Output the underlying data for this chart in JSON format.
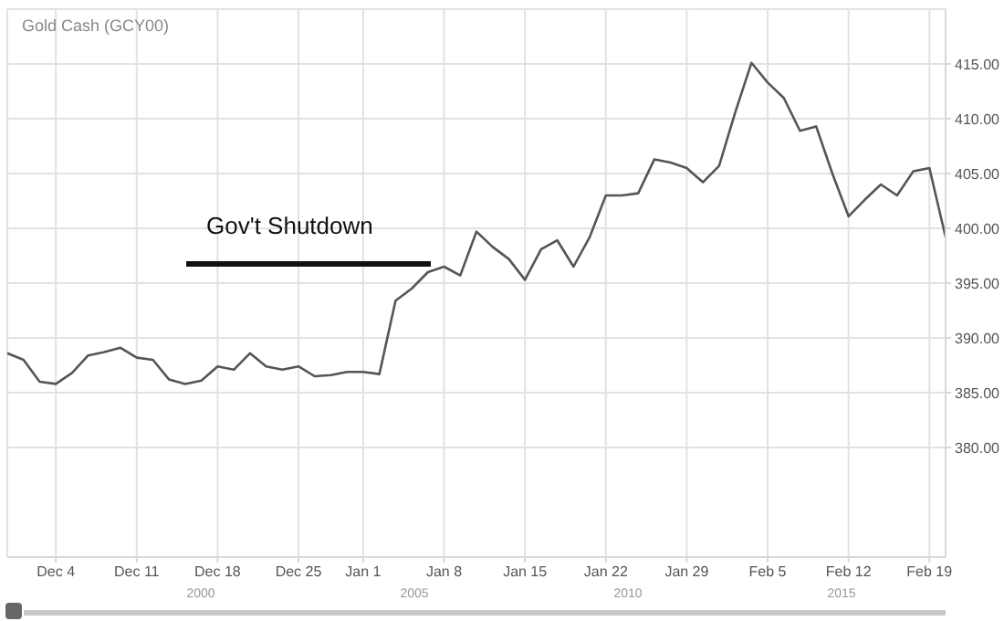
{
  "chart_data": {
    "type": "line",
    "title": "Gold Cash (GCY00)",
    "categories": [
      null,
      null,
      null,
      "Dec 4",
      null,
      null,
      null,
      null,
      "Dec 11",
      null,
      null,
      null,
      null,
      "Dec 18",
      null,
      null,
      null,
      null,
      "Dec 25",
      null,
      null,
      null,
      "Jan 1",
      null,
      null,
      null,
      null,
      "Jan 8",
      null,
      null,
      null,
      null,
      "Jan 15",
      null,
      null,
      null,
      null,
      "Jan 22",
      null,
      null,
      null,
      null,
      "Jan 29",
      null,
      null,
      null,
      null,
      "Feb 5",
      null,
      null,
      null,
      null,
      "Feb 12",
      null,
      null,
      null,
      null,
      "Feb 19",
      null
    ],
    "series": [
      {
        "color": "#555555",
        "values": [
          388.6,
          388.0,
          386.0,
          385.8,
          386.8,
          388.4,
          388.7,
          389.1,
          388.2,
          388.0,
          386.2,
          385.8,
          386.1,
          387.4,
          387.1,
          388.6,
          387.4,
          387.1,
          387.4,
          386.5,
          386.6,
          386.9,
          386.9,
          386.7,
          393.4,
          394.5,
          396.0,
          396.5,
          395.7,
          399.7,
          398.3,
          397.2,
          395.3,
          398.1,
          398.9,
          396.5,
          399.2,
          403.0,
          403.0,
          403.2,
          406.3,
          406.0,
          405.5,
          404.2,
          405.7,
          410.6,
          415.1,
          413.3,
          411.9,
          408.9,
          409.3,
          405.0,
          401.1,
          402.6,
          404.0,
          403.0,
          405.2,
          405.5,
          399.2
        ]
      }
    ],
    "ylim": [
      370,
      420
    ],
    "yticks": [
      {
        "value": 380,
        "label": "380.00"
      },
      {
        "value": 385,
        "label": "385.00"
      },
      {
        "value": 390,
        "label": "390.00"
      },
      {
        "value": 395,
        "label": "395.00"
      },
      {
        "value": 400,
        "label": "400.00"
      },
      {
        "value": 405,
        "label": "405.00"
      },
      {
        "value": 410,
        "label": "410.00"
      },
      {
        "value": 415,
        "label": "415.00"
      }
    ],
    "grid": true,
    "marker": "none",
    "line_style": "solid",
    "annotations": [
      "Gov't Shutdown",
      "2000",
      "2005",
      "2010",
      "2015"
    ]
  }
}
